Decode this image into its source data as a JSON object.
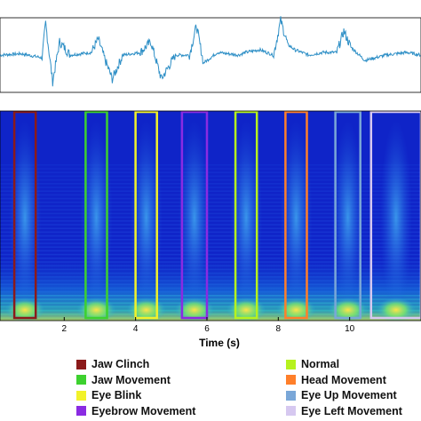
{
  "chart_data": [
    {
      "type": "line",
      "panel": "raw signal",
      "x": [
        0.0,
        0.6,
        1.2,
        1.3,
        1.5,
        1.7,
        2.0,
        2.6,
        2.8,
        3.0,
        3.2,
        3.5,
        4.0,
        4.3,
        4.6,
        5.0,
        5.4,
        5.6,
        5.8,
        6.2,
        6.8,
        7.0,
        7.4,
        7.8,
        8.0,
        8.2,
        8.4,
        8.8,
        9.2,
        9.6,
        9.8,
        10.0,
        10.4,
        11.0,
        11.6,
        12.0
      ],
      "y": [
        0.0,
        0.05,
        -0.1,
        1.2,
        -1.0,
        0.5,
        0.0,
        0.1,
        0.6,
        -0.2,
        -0.9,
        0.0,
        0.1,
        0.5,
        -0.9,
        0.0,
        0.0,
        1.1,
        -0.3,
        0.1,
        0.0,
        0.1,
        0.2,
        0.0,
        1.3,
        0.4,
        0.2,
        0.0,
        0.1,
        0.1,
        0.9,
        0.3,
        -0.2,
        0.0,
        0.1,
        0.0
      ],
      "color": "#2e8fc6",
      "xlim": [
        0,
        12
      ]
    },
    {
      "type": "heatmap",
      "panel": "spectrogram",
      "xlabel": "Time (s)",
      "xticks": [
        "2",
        "4",
        "6",
        "8",
        "10"
      ],
      "xtick_values": [
        2,
        4,
        6,
        8,
        10
      ],
      "xlim": [
        0.2,
        12
      ],
      "colormap": "jet",
      "background": "#0f24c8",
      "event_boxes": [
        {
          "label": "Jaw Clinch",
          "start": 0.6,
          "end": 1.2
        },
        {
          "label": "Jaw Movement",
          "start": 2.6,
          "end": 3.2
        },
        {
          "label": "Eye Blink",
          "start": 4.0,
          "end": 4.6
        },
        {
          "label": "Eyebrow Movement",
          "start": 5.3,
          "end": 6.0
        },
        {
          "label": "Normal",
          "start": 6.8,
          "end": 7.4
        },
        {
          "label": "Head Movement",
          "start": 8.2,
          "end": 8.8
        },
        {
          "label": "Eye Up Movement",
          "start": 9.6,
          "end": 10.3
        },
        {
          "label": "Eye Left Movement",
          "start": 10.6,
          "end": 12.0
        }
      ]
    }
  ],
  "legend": [
    {
      "label": "Jaw Clinch",
      "color": "#8b1a1a"
    },
    {
      "label": "Jaw Movement",
      "color": "#3dd12f"
    },
    {
      "label": "Eye Blink",
      "color": "#f2f22a"
    },
    {
      "label": "Eyebrow Movement",
      "color": "#8a2be2"
    },
    {
      "label": "Normal",
      "color": "#b6f21e"
    },
    {
      "label": "Head Movement",
      "color": "#ff7f2a"
    },
    {
      "label": "Eye Up Movement",
      "color": "#7aa7d8"
    },
    {
      "label": "Eye Left Movement",
      "color": "#d6c8f0"
    }
  ]
}
